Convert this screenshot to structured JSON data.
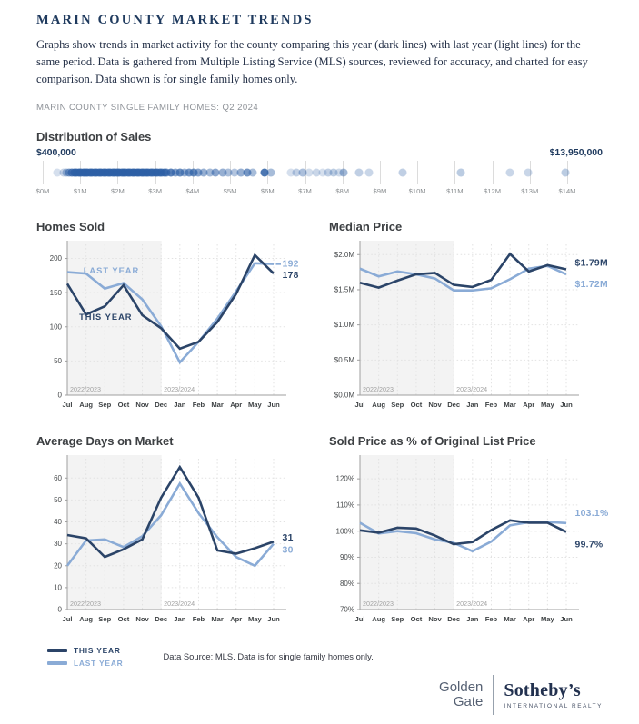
{
  "header": {
    "title": "MARIN COUNTY MARKET TRENDS",
    "description": "Graphs show trends in market activity for the county comparing this year (dark lines) with last year (light lines) for the same period. Data is gathered from Multiple Listing Service (MLS) sources, reviewed for accuracy, and charted for easy comparison. Data shown is for single family homes only.",
    "subtitle": "MARIN COUNTY SINGLE FAMILY HOMES: Q2 2024"
  },
  "colors": {
    "this_year": "#2b4468",
    "last_year": "#8aabd6",
    "dot": "#2d5fa5",
    "headline": "#1f3a5e"
  },
  "distribution": {
    "title": "Distribution of Sales",
    "min_label": "$400,000",
    "max_label": "$13,950,000",
    "axis_max": 14,
    "axis_ticks": [
      "$0M",
      "$1M",
      "$2M",
      "$3M",
      "$4M",
      "$5M",
      "$6M",
      "$7M",
      "$8M",
      "$9M",
      "$10M",
      "$11M",
      "$12M",
      "$13M",
      "$14M"
    ],
    "dots": [
      [
        0.4,
        0.2
      ],
      [
        0.55,
        0.28
      ],
      [
        0.63,
        0.42
      ],
      [
        0.7,
        0.58
      ],
      [
        0.78,
        0.78
      ],
      [
        0.84,
        0.88
      ],
      [
        0.9,
        0.85
      ],
      [
        0.96,
        0.9
      ],
      [
        1.02,
        0.85
      ],
      [
        1.08,
        0.9
      ],
      [
        1.14,
        0.85
      ],
      [
        1.2,
        0.9
      ],
      [
        1.26,
        0.85
      ],
      [
        1.32,
        0.9
      ],
      [
        1.38,
        0.85
      ],
      [
        1.44,
        0.9
      ],
      [
        1.5,
        0.85
      ],
      [
        1.56,
        0.9
      ],
      [
        1.62,
        0.85
      ],
      [
        1.68,
        0.9
      ],
      [
        1.74,
        0.85
      ],
      [
        1.8,
        0.9
      ],
      [
        1.86,
        0.85
      ],
      [
        1.92,
        0.9
      ],
      [
        1.98,
        0.85
      ],
      [
        2.04,
        0.9
      ],
      [
        2.1,
        0.85
      ],
      [
        2.16,
        0.9
      ],
      [
        2.22,
        0.85
      ],
      [
        2.28,
        0.9
      ],
      [
        2.34,
        0.85
      ],
      [
        2.4,
        0.9
      ],
      [
        2.46,
        0.85
      ],
      [
        2.52,
        0.9
      ],
      [
        2.58,
        0.85
      ],
      [
        2.64,
        0.9
      ],
      [
        2.7,
        0.85
      ],
      [
        2.76,
        0.9
      ],
      [
        2.82,
        0.82
      ],
      [
        2.88,
        0.85
      ],
      [
        2.94,
        0.8
      ],
      [
        3.0,
        0.85
      ],
      [
        3.06,
        0.78
      ],
      [
        3.12,
        0.82
      ],
      [
        3.18,
        0.72
      ],
      [
        3.24,
        0.78
      ],
      [
        3.3,
        0.7
      ],
      [
        3.42,
        0.78
      ],
      [
        3.54,
        0.58
      ],
      [
        3.66,
        0.72
      ],
      [
        3.78,
        0.5
      ],
      [
        3.9,
        0.66
      ],
      [
        4.02,
        0.72
      ],
      [
        4.14,
        0.58
      ],
      [
        4.3,
        0.5
      ],
      [
        4.46,
        0.44
      ],
      [
        4.62,
        0.56
      ],
      [
        4.8,
        0.5
      ],
      [
        4.96,
        0.4
      ],
      [
        5.12,
        0.36
      ],
      [
        5.3,
        0.5
      ],
      [
        5.46,
        0.66
      ],
      [
        5.6,
        0.42
      ],
      [
        5.92,
        0.85
      ],
      [
        6.08,
        0.42
      ],
      [
        6.62,
        0.2
      ],
      [
        6.78,
        0.3
      ],
      [
        6.95,
        0.4
      ],
      [
        7.1,
        0.22
      ],
      [
        7.3,
        0.26
      ],
      [
        7.48,
        0.2
      ],
      [
        7.62,
        0.3
      ],
      [
        7.76,
        0.32
      ],
      [
        7.9,
        0.24
      ],
      [
        8.02,
        0.45
      ],
      [
        8.45,
        0.3
      ],
      [
        8.72,
        0.26
      ],
      [
        9.62,
        0.3
      ],
      [
        11.15,
        0.32
      ],
      [
        12.48,
        0.26
      ],
      [
        12.95,
        0.26
      ],
      [
        13.95,
        0.32
      ]
    ]
  },
  "chart_data": [
    {
      "type": "line",
      "title": "Homes Sold",
      "categories": [
        "Jul",
        "Aug",
        "Sep",
        "Oct",
        "Nov",
        "Dec",
        "Jan",
        "Feb",
        "Mar",
        "Apr",
        "May",
        "Jun"
      ],
      "ylim": [
        0,
        218
      ],
      "yticks": [
        {
          "v": 0,
          "label": "0"
        },
        {
          "v": 50,
          "label": "50"
        },
        {
          "v": 100,
          "label": "100"
        },
        {
          "v": 150,
          "label": "150"
        },
        {
          "v": 200,
          "label": "200"
        }
      ],
      "shaded_until_index": 5,
      "period_labels": [
        "2022/2023",
        "2023/2024"
      ],
      "ref_line": null,
      "series": [
        {
          "name": "THIS YEAR",
          "color_key": "this_year",
          "values": [
            163,
            118,
            130,
            161,
            117,
            98,
            68,
            78,
            107,
            148,
            205,
            178
          ],
          "end_label": "178",
          "end_dy": 5
        },
        {
          "name": "LAST YEAR",
          "color_key": "last_year",
          "values": [
            180,
            178,
            156,
            164,
            140,
            101,
            48,
            78,
            112,
            152,
            193,
            192
          ],
          "end_label": "192",
          "end_dy": 3,
          "leader": true
        }
      ],
      "annotations": [
        {
          "text": "LAST YEAR",
          "xi": 2.35,
          "v": 178,
          "color_key": "last_year"
        },
        {
          "text": "THIS YEAR",
          "xi": 2.05,
          "v": 110,
          "color_key": "this_year"
        }
      ]
    },
    {
      "type": "line",
      "title": "Median Price",
      "categories": [
        "Jul",
        "Aug",
        "Sep",
        "Oct",
        "Nov",
        "Dec",
        "Jan",
        "Feb",
        "Mar",
        "Apr",
        "May",
        "Jun"
      ],
      "ylim": [
        0,
        2.12
      ],
      "yticks": [
        {
          "v": 0,
          "label": "$0.0M"
        },
        {
          "v": 0.5,
          "label": "$0.5M"
        },
        {
          "v": 1.0,
          "label": "$1.0M"
        },
        {
          "v": 1.5,
          "label": "$1.5M"
        },
        {
          "v": 2.0,
          "label": "$2.0M"
        }
      ],
      "shaded_until_index": 5,
      "period_labels": [
        "2022/2023",
        "2023/2024"
      ],
      "ref_line": null,
      "series": [
        {
          "name": "THIS YEAR",
          "color_key": "this_year",
          "values": [
            1.6,
            1.53,
            1.63,
            1.72,
            1.74,
            1.57,
            1.54,
            1.64,
            2.01,
            1.76,
            1.85,
            1.79
          ],
          "end_label": "$1.79M",
          "end_dy": -4
        },
        {
          "name": "LAST YEAR",
          "color_key": "last_year",
          "values": [
            1.8,
            1.69,
            1.76,
            1.72,
            1.66,
            1.49,
            1.49,
            1.52,
            1.65,
            1.8,
            1.84,
            1.72
          ],
          "end_label": "$1.72M",
          "end_dy": 14
        }
      ],
      "annotations": []
    },
    {
      "type": "line",
      "title": "Average Days on Market",
      "categories": [
        "Jul",
        "Aug",
        "Sep",
        "Oct",
        "Nov",
        "Dec",
        "Jan",
        "Feb",
        "Mar",
        "Apr",
        "May",
        "Jun"
      ],
      "ylim": [
        0,
        68
      ],
      "yticks": [
        {
          "v": 0,
          "label": "0"
        },
        {
          "v": 10,
          "label": "10"
        },
        {
          "v": 20,
          "label": "20"
        },
        {
          "v": 30,
          "label": "30"
        },
        {
          "v": 40,
          "label": "40"
        },
        {
          "v": 50,
          "label": "50"
        },
        {
          "v": 60,
          "label": "60"
        }
      ],
      "shaded_until_index": 5,
      "period_labels": [
        "2022/2023",
        "2023/2024"
      ],
      "ref_line": null,
      "series": [
        {
          "name": "THIS YEAR",
          "color_key": "this_year",
          "values": [
            34,
            32.5,
            24,
            27.5,
            32,
            51,
            65,
            51,
            27,
            25.5,
            28,
            31
          ],
          "end_label": "31",
          "end_dy": -1
        },
        {
          "name": "LAST YEAR",
          "color_key": "last_year",
          "values": [
            20,
            31.5,
            32,
            28.5,
            33.5,
            43,
            57.5,
            44,
            33,
            24,
            20,
            30
          ],
          "end_label": "30",
          "end_dy": 10
        }
      ],
      "annotations": []
    },
    {
      "type": "line",
      "title": "Sold Price as % of Original List Price",
      "categories": [
        "Jul",
        "Aug",
        "Sep",
        "Oct",
        "Nov",
        "Dec",
        "Jan",
        "Feb",
        "Mar",
        "Apr",
        "May",
        "Jun"
      ],
      "ylim": [
        70,
        127
      ],
      "yticks": [
        {
          "v": 70,
          "label": "70%"
        },
        {
          "v": 80,
          "label": "80%"
        },
        {
          "v": 90,
          "label": "90%"
        },
        {
          "v": 100,
          "label": "100%"
        },
        {
          "v": 110,
          "label": "110%"
        },
        {
          "v": 120,
          "label": "120%"
        }
      ],
      "shaded_until_index": 5,
      "period_labels": [
        "2022/2023",
        "2023/2024"
      ],
      "ref_line": 100,
      "series": [
        {
          "name": "THIS YEAR",
          "color_key": "this_year",
          "values": [
            100.3,
            99.4,
            101.3,
            101.0,
            98.3,
            95.0,
            95.8,
            100.4,
            104.1,
            103.2,
            103.2,
            99.7
          ],
          "end_label": "99.7%",
          "end_dy": 17
        },
        {
          "name": "LAST YEAR",
          "color_key": "last_year",
          "values": [
            103.2,
            99.1,
            100.0,
            99.2,
            96.8,
            95.5,
            92.3,
            96.0,
            102.2,
            103.4,
            103.5,
            103.1
          ],
          "end_label": "103.1%",
          "end_dy": -8
        }
      ],
      "annotations": []
    }
  ],
  "legend": {
    "this_year_label": "THIS YEAR",
    "last_year_label": "LAST YEAR"
  },
  "footer": {
    "data_source": "Data Source: MLS. Data is for single family homes only."
  },
  "logo": {
    "brand_line1": "Golden",
    "brand_line2": "Gate",
    "brand_name": "Sotheby’s",
    "brand_tagline": "INTERNATIONAL REALTY"
  }
}
